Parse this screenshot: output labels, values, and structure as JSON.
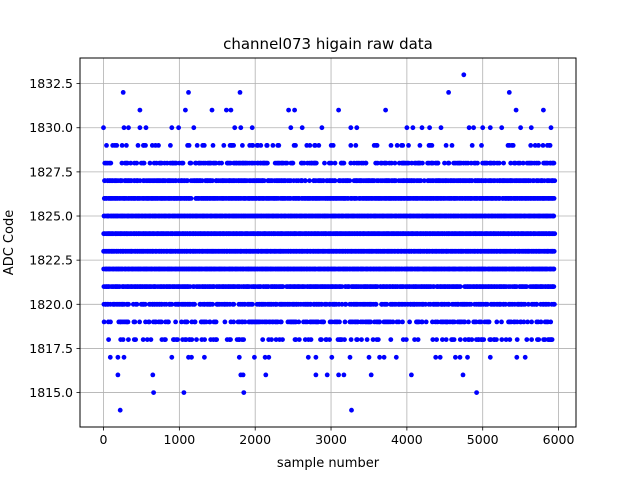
{
  "chart_data": {
    "type": "scatter",
    "title": "channel073 higain raw data",
    "xlabel": "sample number",
    "ylabel": "ADC Code",
    "xlim": [
      -310,
      6230
    ],
    "ylim": [
      1813.05,
      1833.95
    ],
    "xticks": [
      0,
      1000,
      2000,
      3000,
      4000,
      5000,
      6000
    ],
    "yticks": [
      1815.0,
      1817.5,
      1820.0,
      1822.5,
      1825.0,
      1827.5,
      1830.0,
      1832.5
    ],
    "xtick_labels": [
      "0",
      "1000",
      "2000",
      "3000",
      "4000",
      "5000",
      "6000"
    ],
    "ytick_labels": [
      "1815.0",
      "1817.5",
      "1820.0",
      "1822.5",
      "1825.0",
      "1827.5",
      "1830.0",
      "1832.5"
    ],
    "grid": true,
    "legend": "none",
    "marker_color": "#0000ff",
    "n_samples": 5950,
    "dense_levels": [
      1818,
      1819,
      1820,
      1821,
      1822,
      1823,
      1824,
      1825,
      1826,
      1827,
      1828,
      1829
    ],
    "sparse_points": [
      {
        "x": 260,
        "y": 1832
      },
      {
        "x": 1120,
        "y": 1832
      },
      {
        "x": 1800,
        "y": 1832
      },
      {
        "x": 4550,
        "y": 1832
      },
      {
        "x": 5350,
        "y": 1832
      },
      {
        "x": 4750,
        "y": 1833
      },
      {
        "x": 480,
        "y": 1831
      },
      {
        "x": 1080,
        "y": 1831
      },
      {
        "x": 1430,
        "y": 1831
      },
      {
        "x": 1620,
        "y": 1831
      },
      {
        "x": 1680,
        "y": 1831
      },
      {
        "x": 2440,
        "y": 1831
      },
      {
        "x": 2520,
        "y": 1831
      },
      {
        "x": 3100,
        "y": 1831
      },
      {
        "x": 3720,
        "y": 1831
      },
      {
        "x": 5440,
        "y": 1831
      },
      {
        "x": 5800,
        "y": 1831
      },
      {
        "x": 0,
        "y": 1830
      },
      {
        "x": 270,
        "y": 1830
      },
      {
        "x": 330,
        "y": 1830
      },
      {
        "x": 480,
        "y": 1830
      },
      {
        "x": 560,
        "y": 1830
      },
      {
        "x": 900,
        "y": 1830
      },
      {
        "x": 990,
        "y": 1830
      },
      {
        "x": 1190,
        "y": 1830
      },
      {
        "x": 1730,
        "y": 1830
      },
      {
        "x": 1810,
        "y": 1830
      },
      {
        "x": 1960,
        "y": 1830
      },
      {
        "x": 2470,
        "y": 1830
      },
      {
        "x": 2620,
        "y": 1830
      },
      {
        "x": 2880,
        "y": 1830
      },
      {
        "x": 3260,
        "y": 1830
      },
      {
        "x": 3340,
        "y": 1830
      },
      {
        "x": 4000,
        "y": 1830
      },
      {
        "x": 4080,
        "y": 1830
      },
      {
        "x": 4200,
        "y": 1830
      },
      {
        "x": 4300,
        "y": 1830
      },
      {
        "x": 4450,
        "y": 1830
      },
      {
        "x": 4820,
        "y": 1830
      },
      {
        "x": 4880,
        "y": 1830
      },
      {
        "x": 5000,
        "y": 1830
      },
      {
        "x": 5100,
        "y": 1830
      },
      {
        "x": 5250,
        "y": 1830
      },
      {
        "x": 5500,
        "y": 1830
      },
      {
        "x": 5640,
        "y": 1830
      },
      {
        "x": 5900,
        "y": 1830
      },
      {
        "x": 90,
        "y": 1817
      },
      {
        "x": 190,
        "y": 1817
      },
      {
        "x": 270,
        "y": 1817
      },
      {
        "x": 900,
        "y": 1817
      },
      {
        "x": 1120,
        "y": 1817
      },
      {
        "x": 1160,
        "y": 1817
      },
      {
        "x": 1330,
        "y": 1817
      },
      {
        "x": 1790,
        "y": 1817
      },
      {
        "x": 1990,
        "y": 1817
      },
      {
        "x": 2130,
        "y": 1817
      },
      {
        "x": 2180,
        "y": 1817
      },
      {
        "x": 2700,
        "y": 1817
      },
      {
        "x": 2800,
        "y": 1817
      },
      {
        "x": 3010,
        "y": 1817
      },
      {
        "x": 3250,
        "y": 1817
      },
      {
        "x": 3500,
        "y": 1817
      },
      {
        "x": 3640,
        "y": 1817
      },
      {
        "x": 3700,
        "y": 1817
      },
      {
        "x": 3860,
        "y": 1817
      },
      {
        "x": 4380,
        "y": 1817
      },
      {
        "x": 4440,
        "y": 1817
      },
      {
        "x": 4640,
        "y": 1817
      },
      {
        "x": 4700,
        "y": 1817
      },
      {
        "x": 4800,
        "y": 1817
      },
      {
        "x": 5100,
        "y": 1817
      },
      {
        "x": 5450,
        "y": 1817
      },
      {
        "x": 5560,
        "y": 1817
      },
      {
        "x": 190,
        "y": 1816
      },
      {
        "x": 650,
        "y": 1816
      },
      {
        "x": 1810,
        "y": 1816
      },
      {
        "x": 1840,
        "y": 1816
      },
      {
        "x": 2140,
        "y": 1816
      },
      {
        "x": 2800,
        "y": 1816
      },
      {
        "x": 2950,
        "y": 1816
      },
      {
        "x": 3100,
        "y": 1816
      },
      {
        "x": 3170,
        "y": 1816
      },
      {
        "x": 3530,
        "y": 1816
      },
      {
        "x": 4060,
        "y": 1816
      },
      {
        "x": 4740,
        "y": 1816
      },
      {
        "x": 660,
        "y": 1815
      },
      {
        "x": 1060,
        "y": 1815
      },
      {
        "x": 1850,
        "y": 1815
      },
      {
        "x": 4920,
        "y": 1815
      },
      {
        "x": 220,
        "y": 1814
      },
      {
        "x": 3270,
        "y": 1814
      }
    ]
  }
}
